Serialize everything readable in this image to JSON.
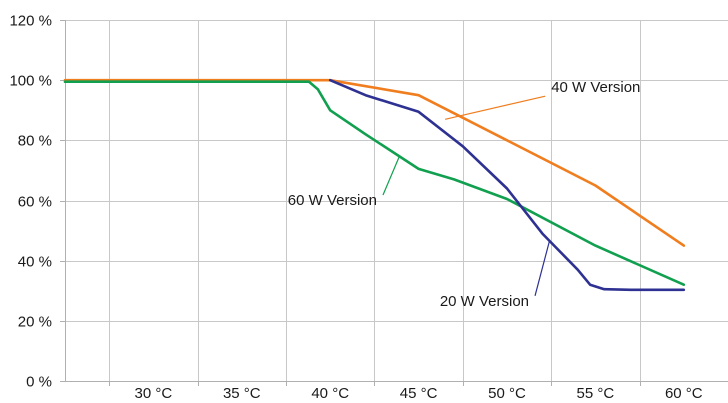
{
  "chart_data": {
    "type": "line",
    "title": "",
    "xlabel": "",
    "ylabel": "",
    "xlim": [
      25,
      62.5
    ],
    "ylim": [
      0,
      120
    ],
    "x_ticks": [
      {
        "value": 30,
        "label": "30 °C"
      },
      {
        "value": 35,
        "label": "35 °C"
      },
      {
        "value": 40,
        "label": "40 °C"
      },
      {
        "value": 45,
        "label": "45 °C"
      },
      {
        "value": 50,
        "label": "50 °C"
      },
      {
        "value": 55,
        "label": "55 °C"
      },
      {
        "value": 60,
        "label": "60 °C"
      }
    ],
    "y_ticks": [
      {
        "value": 0,
        "label": "0 %"
      },
      {
        "value": 20,
        "label": "20 %"
      },
      {
        "value": 40,
        "label": "40 %"
      },
      {
        "value": 60,
        "label": "60 %"
      },
      {
        "value": 80,
        "label": "80 %"
      },
      {
        "value": 100,
        "label": "100 %"
      },
      {
        "value": 120,
        "label": "120 %"
      }
    ],
    "grid": true,
    "legend": "none",
    "series": [
      {
        "key": "w40",
        "color": "#f07d1e",
        "points": [
          [
            25,
            100
          ],
          [
            40,
            100
          ],
          [
            45,
            95
          ],
          [
            50,
            80
          ],
          [
            55,
            65
          ],
          [
            60,
            45
          ]
        ],
        "annotation": {
          "text": "40 W Version",
          "point": [
            46.5,
            87
          ],
          "label_at": [
            52.5,
            96
          ]
        }
      },
      {
        "key": "w60",
        "color": "#11a04f",
        "points": [
          [
            25,
            99.5
          ],
          [
            38.8,
            99.5
          ],
          [
            39.3,
            97
          ],
          [
            40,
            90
          ],
          [
            42,
            82
          ],
          [
            45,
            70.5
          ],
          [
            47,
            67
          ],
          [
            50,
            60.5
          ],
          [
            55,
            45
          ],
          [
            60,
            32
          ]
        ],
        "annotation": {
          "text": "60 W Version",
          "point": [
            43.9,
            74.5
          ],
          "label_at": [
            37.6,
            58.5
          ]
        }
      },
      {
        "key": "w20",
        "color": "#2e3192",
        "points": [
          [
            40,
            100
          ],
          [
            42,
            95
          ],
          [
            45,
            89.5
          ],
          [
            47.5,
            78
          ],
          [
            50,
            64
          ],
          [
            52,
            49
          ],
          [
            54,
            37
          ],
          [
            54.7,
            32
          ],
          [
            55.5,
            30.5
          ],
          [
            57,
            30.3
          ],
          [
            60,
            30.3
          ]
        ],
        "annotation": {
          "text": "20 W Version",
          "point": [
            52.4,
            46.5
          ],
          "label_at": [
            46.2,
            25
          ]
        }
      }
    ]
  }
}
